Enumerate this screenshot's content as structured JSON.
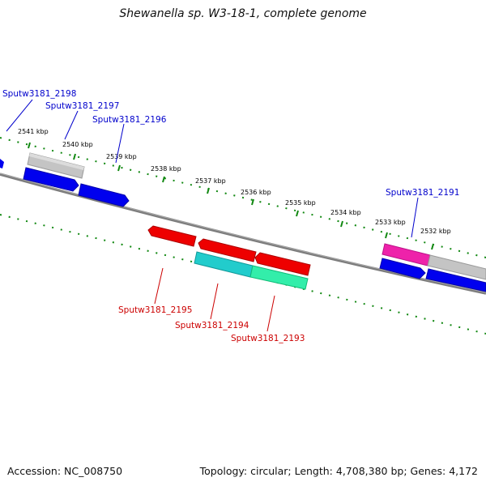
{
  "title": "Shewanella sp. W3-18-1, complete genome",
  "footer": {
    "accession_label": "Accession:",
    "accession": "NC_008750",
    "topology": "Topology: circular; Length: 4,708,380 bp; Genes: 4,172"
  },
  "scale": {
    "ticks": [
      "2541 kbp",
      "2540 kbp",
      "2539 kbp",
      "2538 kbp",
      "2537 kbp",
      "2536 kbp",
      "2535 kbp",
      "2534 kbp",
      "2533 kbp",
      "2532 kbp"
    ]
  },
  "genes": {
    "forward": [
      {
        "label": "Sputw3181_2198",
        "color": "#0000cc"
      },
      {
        "label": "Sputw3181_2197",
        "color": "#0000cc"
      },
      {
        "label": "Sputw3181_2196",
        "color": "#0000cc"
      },
      {
        "label": "Sputw3181_2191",
        "color": "#0000cc"
      }
    ],
    "reverse": [
      {
        "label": "Sputw3181_2195",
        "color": "#cc0000"
      },
      {
        "label": "Sputw3181_2194",
        "color": "#cc0000"
      },
      {
        "label": "Sputw3181_2193",
        "color": "#cc0000"
      }
    ]
  },
  "colors": {
    "cds_forward": "#0000ee",
    "cds_reverse": "#ee0000",
    "rna_gray": "#bdbdbd",
    "cyan": "#22cccc",
    "green": "#33eeaa",
    "magenta": "#ee22aa",
    "backbone": "#808080",
    "ticks": "#118811"
  }
}
